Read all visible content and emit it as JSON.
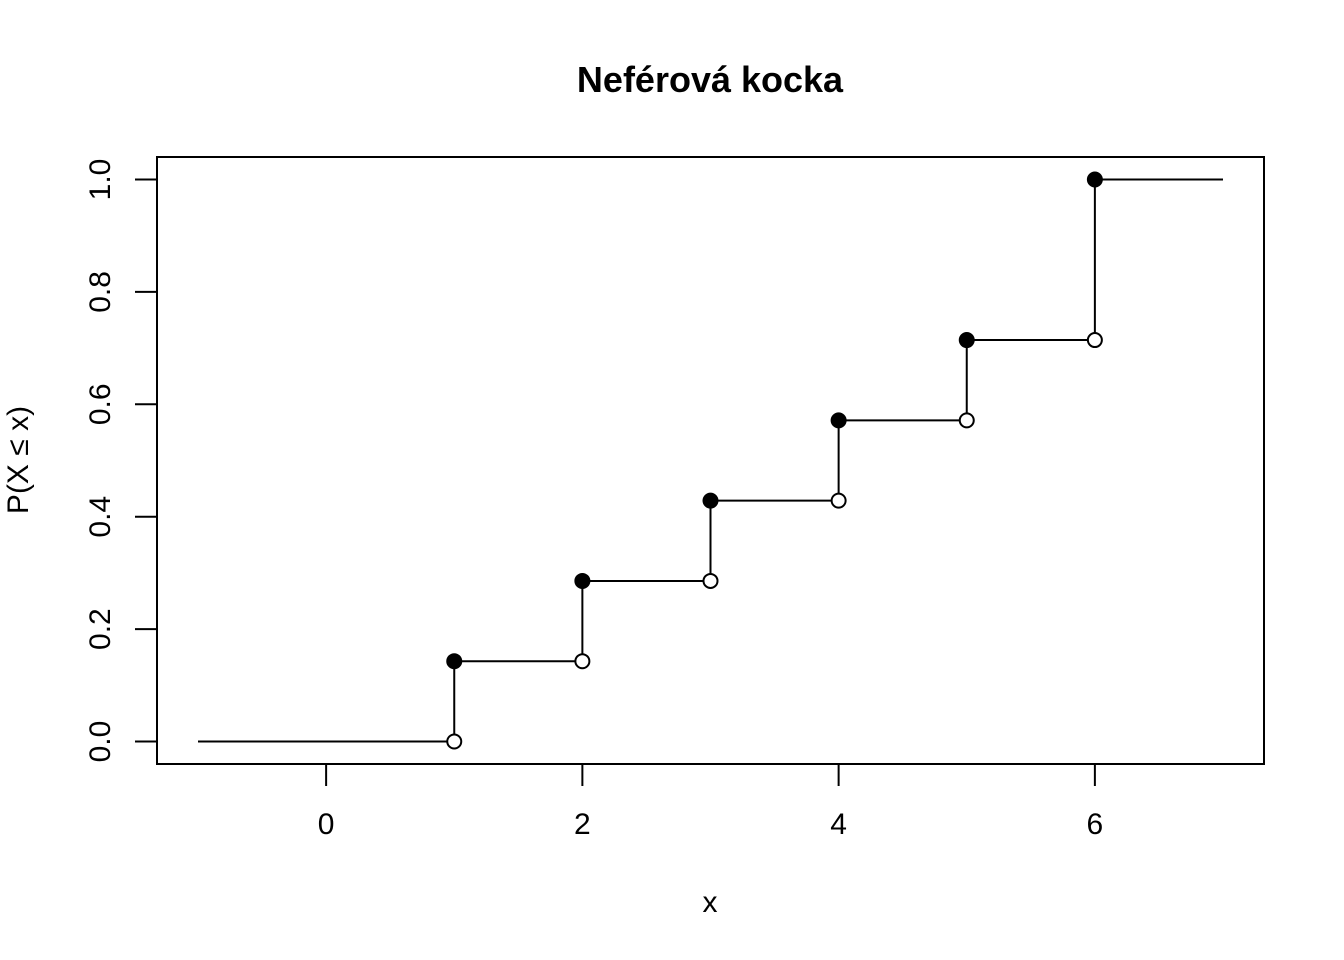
{
  "chart_data": {
    "type": "line",
    "title": "Neférová kocka",
    "xlabel": "x",
    "ylabel": "P(X ≤ x)",
    "xlim": [
      -1.32,
      7.32
    ],
    "ylim": [
      -0.04,
      1.04
    ],
    "x_ticks": [
      0,
      2,
      4,
      6
    ],
    "y_ticks": [
      0.0,
      0.2,
      0.4,
      0.6,
      0.8,
      1.0
    ],
    "y_tick_labels": [
      "0.0",
      "0.2",
      "0.4",
      "0.6",
      "0.8",
      "1.0"
    ],
    "step_points": [
      {
        "x": 1,
        "open_y": 0.0,
        "closed_y": 0.1429
      },
      {
        "x": 2,
        "open_y": 0.1429,
        "closed_y": 0.2857
      },
      {
        "x": 3,
        "open_y": 0.2857,
        "closed_y": 0.4286
      },
      {
        "x": 4,
        "open_y": 0.4286,
        "closed_y": 0.5714
      },
      {
        "x": 5,
        "open_y": 0.5714,
        "closed_y": 0.7143
      },
      {
        "x": 6,
        "open_y": 0.7143,
        "closed_y": 1.0
      }
    ],
    "x_start": -1,
    "x_end": 7,
    "grid": false,
    "colors": {
      "line": "#000000",
      "background": "#ffffff"
    }
  }
}
